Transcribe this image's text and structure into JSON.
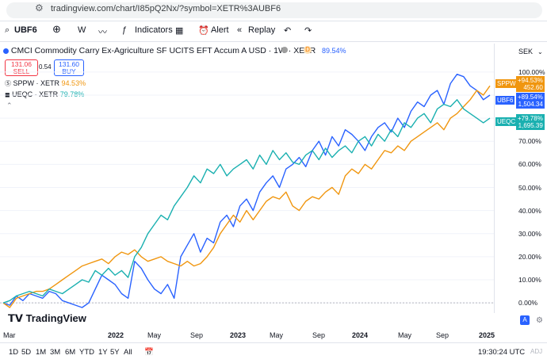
{
  "browser": {
    "url": "tradingview.com/chart/I85pQ2Nx/?symbol=XETR%3AUBF6"
  },
  "toolbar": {
    "symbol": "UBF6",
    "interval": "W",
    "indicators_label": "Indicators",
    "alert_label": "Alert",
    "replay_label": "Replay"
  },
  "legend": {
    "title": "CMCI Commodity Carry Ex-Agriculture SF UCITS EFT Accum A USD · 1W · XETR",
    "main_pct": "89.54%",
    "sell_price": "131.06",
    "sell_label": "SELL",
    "spread": "0.54",
    "buy_price": "131.60",
    "buy_label": "BUY",
    "currency": "SEK",
    "compares": [
      {
        "symbol": "SPPW · XETR",
        "pct": "94.53%",
        "color": "#f0960f"
      },
      {
        "symbol": "UEQC · XETR",
        "pct": "79.78%",
        "color": "#1ab0b0"
      }
    ]
  },
  "price_tags": [
    {
      "name": "SPPW",
      "pct": "+94.53%",
      "value": "452.60",
      "color": "#f0960f"
    },
    {
      "name": "UBF6",
      "pct": "+89.54%",
      "value": "1,504.34",
      "color": "#2962ff"
    },
    {
      "name": "UEQC",
      "pct": "+79.78%",
      "value": "1,695.39",
      "color": "#1ab0b0"
    }
  ],
  "chart_data": {
    "type": "line",
    "y_ticks": [
      "100.00%",
      "90.00%",
      "80.00%",
      "70.00%",
      "60.00%",
      "50.00%",
      "40.00%",
      "30.00%",
      "20.00%",
      "10.00%",
      "0.00%"
    ],
    "ylim": [
      -2,
      102
    ],
    "x_ticks": [
      "Mar",
      "2022",
      "May",
      "Sep",
      "2023",
      "May",
      "Sep",
      "2024",
      "May",
      "Sep",
      "2025"
    ],
    "series": [
      {
        "name": "UBF6",
        "color": "#2962ff",
        "values": [
          0,
          -1,
          3,
          1,
          4,
          3,
          2,
          5,
          4,
          1,
          0,
          -1,
          -2,
          0,
          6,
          12,
          10,
          8,
          4,
          2,
          18,
          15,
          10,
          6,
          4,
          8,
          2,
          20,
          25,
          30,
          22,
          28,
          26,
          35,
          38,
          33,
          42,
          45,
          40,
          48,
          52,
          55,
          50,
          58,
          60,
          63,
          59,
          66,
          70,
          64,
          72,
          68,
          75,
          73,
          70,
          66,
          72,
          76,
          78,
          74,
          80,
          76,
          83,
          87,
          85,
          90,
          92,
          86,
          95,
          99,
          98,
          94,
          92,
          88,
          90
        ]
      },
      {
        "name": "SPPW",
        "color": "#f0960f",
        "values": [
          0,
          -2,
          2,
          3,
          4,
          5,
          5,
          6,
          8,
          10,
          12,
          14,
          16,
          17,
          18,
          19,
          17,
          20,
          22,
          21,
          23,
          20,
          18,
          19,
          20,
          18,
          17,
          16,
          18,
          16,
          17,
          20,
          24,
          30,
          34,
          38,
          35,
          40,
          36,
          40,
          44,
          46,
          45,
          48,
          42,
          40,
          44,
          46,
          45,
          48,
          50,
          47,
          55,
          58,
          56,
          60,
          58,
          62,
          66,
          65,
          68,
          66,
          70,
          72,
          74,
          76,
          78,
          75,
          80,
          82,
          85,
          88,
          92,
          90,
          94
        ]
      },
      {
        "name": "UEQC",
        "color": "#1ab0b0",
        "values": [
          0,
          1,
          3,
          4,
          5,
          4,
          3,
          6,
          5,
          4,
          6,
          8,
          10,
          9,
          14,
          12,
          15,
          12,
          14,
          11,
          20,
          24,
          30,
          34,
          38,
          36,
          42,
          46,
          50,
          55,
          52,
          58,
          56,
          60,
          55,
          58,
          60,
          62,
          58,
          64,
          60,
          66,
          62,
          65,
          61,
          60,
          64,
          66,
          62,
          67,
          63,
          66,
          68,
          65,
          70,
          72,
          68,
          73,
          70,
          75,
          72,
          78,
          76,
          80,
          82,
          78,
          84,
          86,
          85,
          88,
          84,
          82,
          80,
          78,
          80
        ]
      }
    ]
  },
  "logo_text": "TradingView",
  "bottom": {
    "ranges": [
      "1D",
      "5D",
      "1M",
      "3M",
      "6M",
      "YTD",
      "1Y",
      "5Y",
      "All"
    ],
    "clock": "19:30:24 UTC",
    "adj": "ADJ",
    "auto_label": "A"
  }
}
